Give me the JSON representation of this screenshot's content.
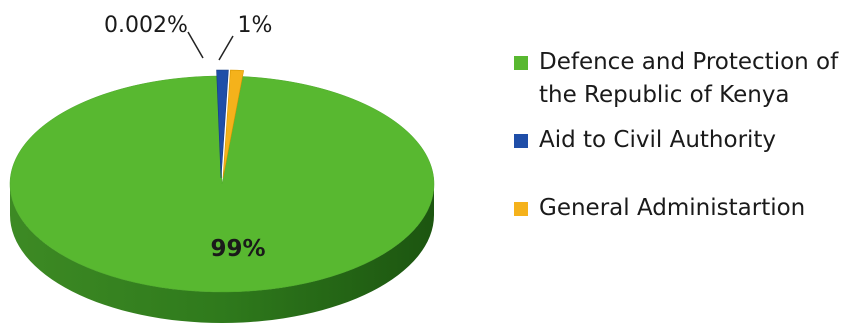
{
  "chart_data": {
    "type": "pie",
    "title": "",
    "style": "3d-tilted",
    "legend_position": "right",
    "slices": [
      {
        "name": "Defence and Protection of the Republic of Kenya",
        "value": 99,
        "label": "99%",
        "color": "#58b830"
      },
      {
        "name": "Aid to Civil Authority",
        "value": 0.002,
        "label": "0.002%",
        "color": "#1f4ea8"
      },
      {
        "name": "General Administartion",
        "value": 1,
        "label": "1%",
        "color": "#f5b21b"
      }
    ]
  }
}
